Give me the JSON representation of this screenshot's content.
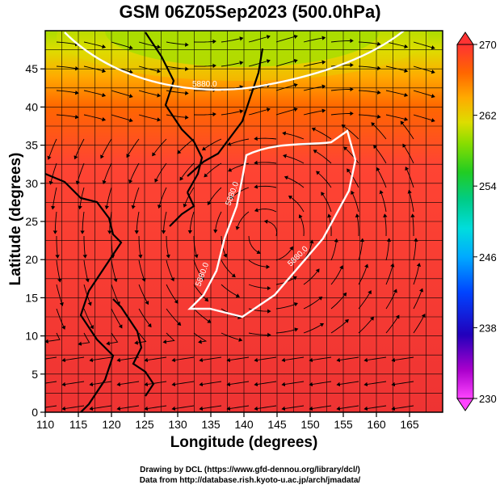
{
  "title": "GSM 06Z05Sep2023 (500.0hPa)",
  "xlabel": "Longitude (degrees)",
  "ylabel": "Latitude  (degrees)",
  "x_ticks": [
    110,
    115,
    120,
    125,
    130,
    135,
    140,
    145,
    150,
    155,
    160,
    165
  ],
  "y_ticks": [
    0,
    5,
    10,
    15,
    20,
    25,
    30,
    35,
    40,
    45
  ],
  "extent": {
    "lon": [
      110,
      170
    ],
    "lat": [
      0,
      50
    ]
  },
  "colorbar": {
    "ticks": [
      270,
      262,
      254,
      246,
      238,
      230
    ],
    "range": [
      230,
      270
    ],
    "colors": [
      "#ff44ff",
      "#aa00cc",
      "#2200bb",
      "#0044ff",
      "#00aaff",
      "#00dddd",
      "#00cc88",
      "#22cc22",
      "#88dd00",
      "#dddd00",
      "#ffaa00",
      "#ff6600",
      "#ff3333",
      "#ee3333"
    ]
  },
  "contour_labels": [
    "5880.0",
    "5880.0",
    "5880.0",
    "5880.0"
  ],
  "credits": [
    "Drawing by DCL (https://www.gfd-dennou.org/library/dcl/)",
    "Data from http://database.rish.kyoto-u.ac.jp/arch/jmadata/"
  ]
}
